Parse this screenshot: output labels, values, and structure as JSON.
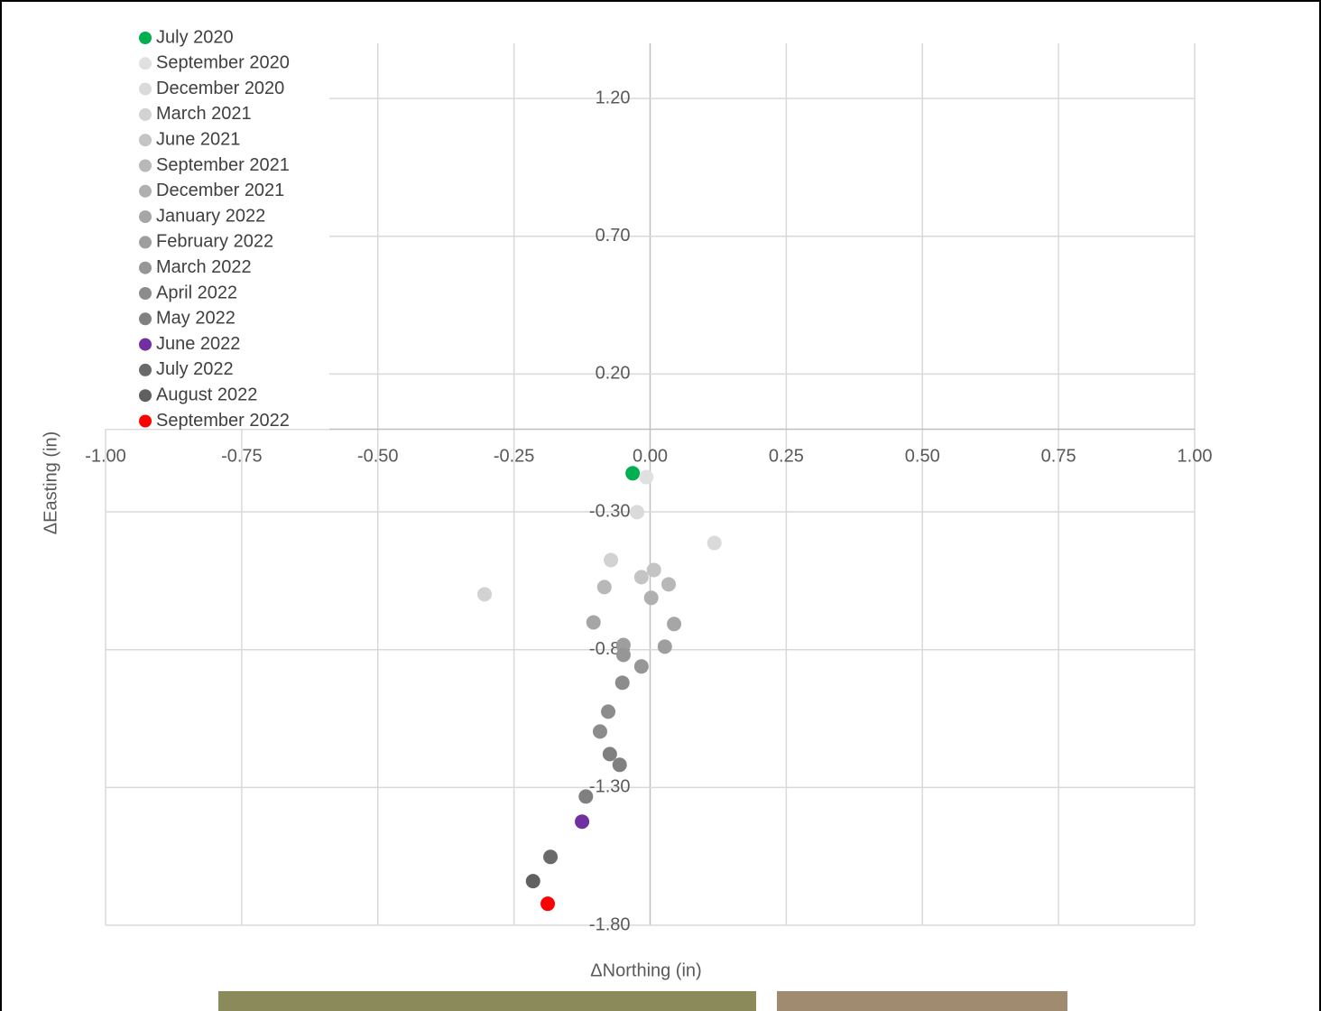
{
  "chart_data": {
    "type": "scatter",
    "x_label": "ΔNorthing (in)",
    "y_label": "ΔEasting (in)",
    "xlim": [
      -1,
      1
    ],
    "ylim": [
      -1.8,
      1.4
    ],
    "xticks": [
      {
        "value": -1,
        "label": "-1.00"
      },
      {
        "value": -0.75,
        "label": "-0.75"
      },
      {
        "value": -0.5,
        "label": "-0.50"
      },
      {
        "value": -0.25,
        "label": "-0.25"
      },
      {
        "value": 0,
        "label": "0.00"
      },
      {
        "value": 0.25,
        "label": "0.25"
      },
      {
        "value": 0.5,
        "label": "0.50"
      },
      {
        "value": 0.75,
        "label": "0.75"
      },
      {
        "value": 1,
        "label": "1.00"
      }
    ],
    "yticks": [
      {
        "value": 1.2,
        "label": "1.20"
      },
      {
        "value": 0.7,
        "label": "0.70"
      },
      {
        "value": 0.2,
        "label": "0.20"
      },
      {
        "value": -0.3,
        "label": "-0.30"
      },
      {
        "value": -0.8,
        "label": "-0.80"
      },
      {
        "value": -1.3,
        "label": "-1.30"
      },
      {
        "value": -1.8,
        "label": "-1.80"
      }
    ],
    "grid": true,
    "legend": "upper-left",
    "series": [
      {
        "name": "July 2020",
        "color": "#00b050",
        "x": [
          -0.032
        ],
        "values": [
          -0.16
        ]
      },
      {
        "name": "September 2020",
        "color": "#e0e0e0",
        "x": [
          -0.007
        ],
        "values": [
          -0.174
        ]
      },
      {
        "name": "December 2020",
        "color": "#dadada",
        "x": [
          -0.024,
          0.118
        ],
        "values": [
          -0.301,
          -0.413
        ]
      },
      {
        "name": "March 2021",
        "color": "#d2d2d2",
        "x": [
          -0.072,
          -0.304
        ],
        "values": [
          -0.475,
          -0.599
        ]
      },
      {
        "name": "June 2021",
        "color": "#c4c4c4",
        "x": [
          -0.016,
          0.007
        ],
        "values": [
          -0.537,
          -0.511
        ]
      },
      {
        "name": "September 2021",
        "color": "#b8b8b8",
        "x": [
          -0.084,
          0.034
        ],
        "values": [
          -0.573,
          -0.563
        ]
      },
      {
        "name": "December 2021",
        "color": "#b0b0b0",
        "x": [
          0.002
        ],
        "values": [
          -0.612
        ]
      },
      {
        "name": "January 2022",
        "color": "#a6a6a6",
        "x": [
          -0.104,
          0.044
        ],
        "values": [
          -0.701,
          -0.707
        ]
      },
      {
        "name": "February 2022",
        "color": "#9e9e9e",
        "x": [
          -0.049,
          0.027
        ],
        "values": [
          -0.783,
          -0.789
        ]
      },
      {
        "name": "March 2022",
        "color": "#969696",
        "x": [
          -0.049,
          -0.016
        ],
        "values": [
          -0.819,
          -0.861
        ]
      },
      {
        "name": "April 2022",
        "color": "#8c8c8c",
        "x": [
          -0.051,
          -0.077,
          -0.092
        ],
        "values": [
          -0.92,
          -1.025,
          -1.097
        ]
      },
      {
        "name": "May 2022",
        "color": "#808080",
        "x": [
          -0.074,
          -0.056,
          -0.118
        ],
        "values": [
          -1.179,
          -1.218,
          -1.333
        ]
      },
      {
        "name": "June 2022",
        "color": "#7030a0",
        "x": [
          -0.125
        ],
        "values": [
          -1.424
        ]
      },
      {
        "name": "July 2022",
        "color": "#6a6a6a",
        "x": [
          -0.183
        ],
        "values": [
          -1.552
        ]
      },
      {
        "name": "August 2022",
        "color": "#606060",
        "x": [
          -0.215
        ],
        "values": [
          -1.64
        ]
      },
      {
        "name": "September 2022",
        "color": "#ff0000",
        "x": [
          -0.188
        ],
        "values": [
          -1.722
        ]
      }
    ]
  }
}
